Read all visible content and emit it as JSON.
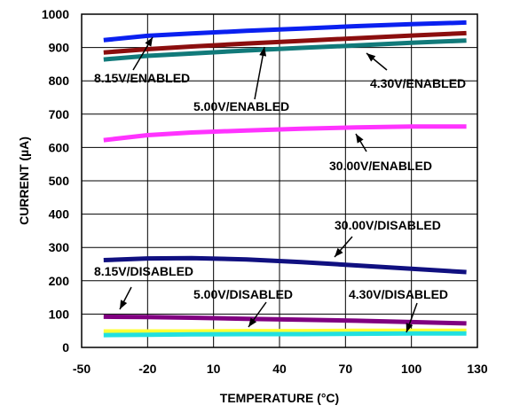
{
  "chart_data": {
    "type": "line",
    "xlabel": "TEMPERATURE (°C)",
    "ylabel": "CURRENT (µA)",
    "xlim": [
      -50,
      130
    ],
    "ylim": [
      0,
      1000
    ],
    "x_ticks": [
      -50,
      -20,
      10,
      40,
      70,
      100,
      130
    ],
    "y_ticks": [
      0,
      100,
      200,
      300,
      400,
      500,
      600,
      700,
      800,
      900,
      1000
    ],
    "grid": true,
    "series": [
      {
        "name": "8.15V/ENABLED",
        "color": "#0a20f0",
        "x": [
          -40,
          -20,
          0,
          25,
          50,
          75,
          100,
          125
        ],
        "y": [
          922,
          935,
          942,
          950,
          957,
          964,
          970,
          975
        ]
      },
      {
        "name": "5.00V/ENABLED",
        "color": "#8b0e0e",
        "x": [
          -40,
          -20,
          0,
          25,
          50,
          75,
          100,
          125
        ],
        "y": [
          885,
          895,
          903,
          912,
          920,
          928,
          936,
          943
        ]
      },
      {
        "name": "4.30V/ENABLED",
        "color": "#117a7a",
        "x": [
          -40,
          -20,
          0,
          25,
          50,
          75,
          100,
          125
        ],
        "y": [
          864,
          875,
          882,
          891,
          899,
          906,
          914,
          921
        ]
      },
      {
        "name": "30.00V/ENABLED",
        "color": "#ff33ff",
        "x": [
          -40,
          -20,
          0,
          25,
          50,
          75,
          100,
          125
        ],
        "y": [
          622,
          637,
          645,
          651,
          656,
          660,
          663,
          663
        ]
      },
      {
        "name": "30.00V/DISABLED",
        "color": "#101080",
        "x": [
          -40,
          -20,
          0,
          25,
          50,
          75,
          100,
          125
        ],
        "y": [
          262,
          267,
          268,
          264,
          256,
          246,
          236,
          226
        ]
      },
      {
        "name": "8.15V/DISABLED",
        "color": "#800080",
        "x": [
          -40,
          -20,
          0,
          25,
          50,
          75,
          100,
          125
        ],
        "y": [
          92,
          91,
          89,
          86,
          83,
          80,
          76,
          72
        ]
      },
      {
        "name": "5.00V/DISABLED",
        "color": "#ffff33",
        "x": [
          -40,
          -20,
          0,
          25,
          50,
          75,
          100,
          125
        ],
        "y": [
          48,
          48,
          48,
          49,
          49,
          50,
          50,
          50
        ]
      },
      {
        "name": "4.30V/DISABLED",
        "color": "#22e0e0",
        "x": [
          -40,
          -20,
          0,
          25,
          50,
          75,
          100,
          125
        ],
        "y": [
          37,
          38,
          39,
          40,
          40,
          41,
          42,
          42
        ]
      }
    ],
    "annotations": [
      {
        "text": "8.15V/ENABLED",
        "series": "8.15V/ENABLED"
      },
      {
        "text": "5.00V/ENABLED",
        "series": "5.00V/ENABLED"
      },
      {
        "text": "4.30V/ENABLED",
        "series": "4.30V/ENABLED"
      },
      {
        "text": "30.00V/ENABLED",
        "series": "30.00V/ENABLED"
      },
      {
        "text": "30.00V/DISABLED",
        "series": "30.00V/DISABLED"
      },
      {
        "text": "8.15V/DISABLED",
        "series": "8.15V/DISABLED"
      },
      {
        "text": "5.00V/DISABLED",
        "series": "5.00V/DISABLED"
      },
      {
        "text": "4.30V/DISABLED",
        "series": "4.30V/DISABLED"
      }
    ]
  }
}
